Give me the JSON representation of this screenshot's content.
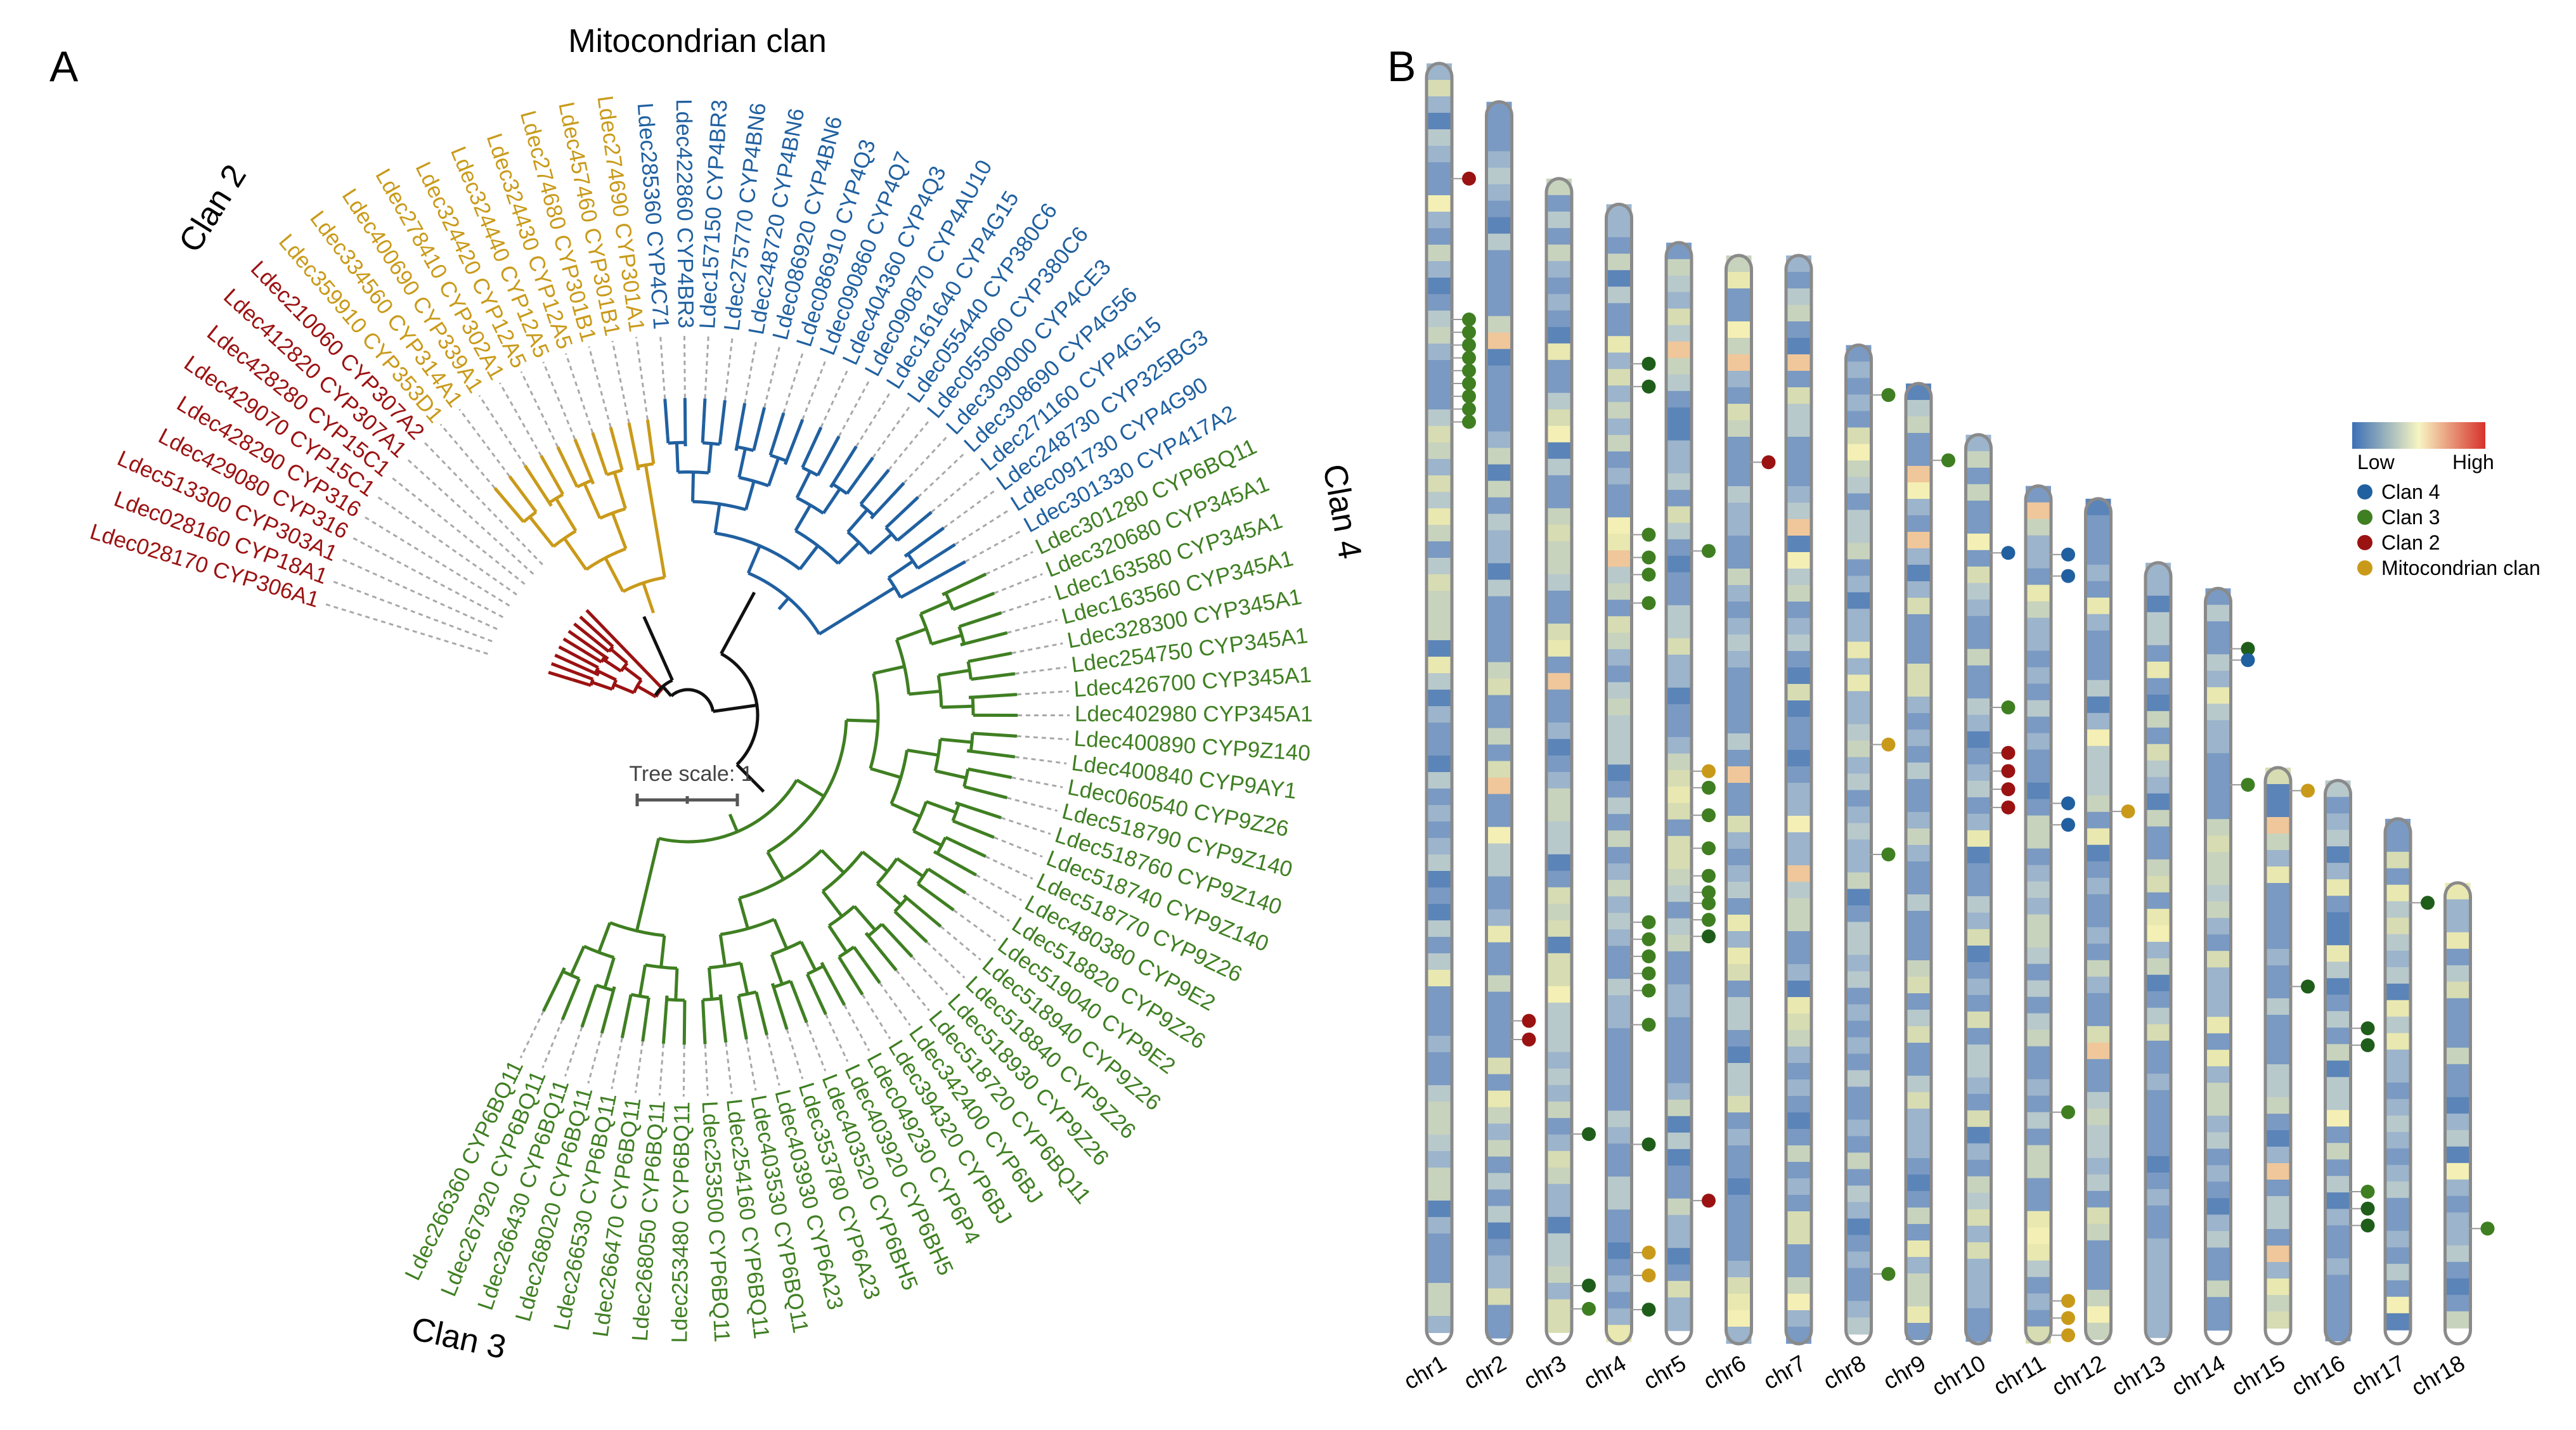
{
  "panels": {
    "a": "A",
    "b": "B"
  },
  "clan_labels": {
    "mito": "Mitocondrian clan",
    "clan2": "Clan 2",
    "clan3": "Clan 3",
    "clan4": "Clan 4"
  },
  "tree_scale": "Tree scale: 1",
  "colors": {
    "mito": "#c99a1a",
    "clan2": "#9b1212",
    "clan3": "#3f7f22",
    "clan3dark": "#1f5e1a",
    "clan4": "#2060a0",
    "branch": "#111111",
    "leader": "#a8a8a8"
  },
  "leaves": [
    {
      "label": "Ldec028170 CYP306A1",
      "clan": "clan2"
    },
    {
      "label": "Ldec028160 CYP18A1",
      "clan": "clan2"
    },
    {
      "label": "Ldec513300 CYP303A1",
      "clan": "clan2"
    },
    {
      "label": "Ldec429080 CYP316",
      "clan": "clan2"
    },
    {
      "label": "Ldec428290 CYP316",
      "clan": "clan2"
    },
    {
      "label": "Ldec429070 CYP15C1",
      "clan": "clan2"
    },
    {
      "label": "Ldec428280 CYP15C1",
      "clan": "clan2"
    },
    {
      "label": "Ldec412820 CYP307A1",
      "clan": "clan2"
    },
    {
      "label": "Ldec210060 CYP307A2",
      "clan": "clan2"
    },
    {
      "label": "Ldec359910 CYP353D1",
      "clan": "mito"
    },
    {
      "label": "Ldec334560 CYP314A1",
      "clan": "mito"
    },
    {
      "label": "Ldec400690 CYP339A1",
      "clan": "mito"
    },
    {
      "label": "Ldec278410 CYP302A1",
      "clan": "mito"
    },
    {
      "label": "Ldec324420 CYP12A5",
      "clan": "mito"
    },
    {
      "label": "Ldec324440 CYP12A5",
      "clan": "mito"
    },
    {
      "label": "Ldec324430 CYP12A5",
      "clan": "mito"
    },
    {
      "label": "Ldec274680 CYP301B1",
      "clan": "mito"
    },
    {
      "label": "Ldec457460 CYP301B1",
      "clan": "mito"
    },
    {
      "label": "Ldec274690 CYP301A1",
      "clan": "mito"
    },
    {
      "label": "Ldec285360 CYP4C71",
      "clan": "clan4"
    },
    {
      "label": "Ldec422860 CYP4BR3",
      "clan": "clan4"
    },
    {
      "label": "Ldec157150 CYP4BR3",
      "clan": "clan4"
    },
    {
      "label": "Ldec275770 CYP4BN6",
      "clan": "clan4"
    },
    {
      "label": "Ldec248720 CYP4BN6",
      "clan": "clan4"
    },
    {
      "label": "Ldec086920 CYP4BN6",
      "clan": "clan4"
    },
    {
      "label": "Ldec086910 CYP4Q3",
      "clan": "clan4"
    },
    {
      "label": "Ldec090860 CYP4Q7",
      "clan": "clan4"
    },
    {
      "label": "Ldec404360 CYP4Q3",
      "clan": "clan4"
    },
    {
      "label": "Ldec090870 CYP4AU10",
      "clan": "clan4"
    },
    {
      "label": "Ldec161640 CYP4G15",
      "clan": "clan4"
    },
    {
      "label": "Ldec055440 CYP380C6",
      "clan": "clan4"
    },
    {
      "label": "Ldec055060 CYP380C6",
      "clan": "clan4"
    },
    {
      "label": "Ldec309000 CYP4CE3",
      "clan": "clan4"
    },
    {
      "label": "Ldec308690 CYP4G56",
      "clan": "clan4"
    },
    {
      "label": "Ldec271160 CYP4G15",
      "clan": "clan4"
    },
    {
      "label": "Ldec248730 CYP325BG3",
      "clan": "clan4"
    },
    {
      "label": "Ldec091730 CYP4G90",
      "clan": "clan4"
    },
    {
      "label": "Ldec301330 CYP417A2",
      "clan": "clan4"
    },
    {
      "label": "Ldec301280 CYP6BQ11",
      "clan": "clan3"
    },
    {
      "label": "Ldec320680 CYP345A1",
      "clan": "clan3"
    },
    {
      "label": "Ldec163580 CYP345A1",
      "clan": "clan3"
    },
    {
      "label": "Ldec163560 CYP345A1",
      "clan": "clan3"
    },
    {
      "label": "Ldec328300 CYP345A1",
      "clan": "clan3"
    },
    {
      "label": "Ldec254750 CYP345A1",
      "clan": "clan3"
    },
    {
      "label": "Ldec426700 CYP345A1",
      "clan": "clan3"
    },
    {
      "label": "Ldec402980 CYP345A1",
      "clan": "clan3"
    },
    {
      "label": "Ldec400890 CYP9Z140",
      "clan": "clan3"
    },
    {
      "label": "Ldec400840 CYP9AY1",
      "clan": "clan3"
    },
    {
      "label": "Ldec060540 CYP9Z26",
      "clan": "clan3"
    },
    {
      "label": "Ldec518790 CYP9Z140",
      "clan": "clan3"
    },
    {
      "label": "Ldec518760 CYP9Z140",
      "clan": "clan3"
    },
    {
      "label": "Ldec518740 CYP9Z140",
      "clan": "clan3"
    },
    {
      "label": "Ldec518770 CYP9Z26",
      "clan": "clan3"
    },
    {
      "label": "Ldec480380 CYP9E2",
      "clan": "clan3"
    },
    {
      "label": "Ldec518820 CYP9Z26",
      "clan": "clan3"
    },
    {
      "label": "Ldec519040 CYP9E2",
      "clan": "clan3"
    },
    {
      "label": "Ldec518940 CYP9Z26",
      "clan": "clan3"
    },
    {
      "label": "Ldec518840 CYP9Z26",
      "clan": "clan3"
    },
    {
      "label": "Ldec518930 CYP9Z26",
      "clan": "clan3"
    },
    {
      "label": "Ldec518720 CYP6BQ11",
      "clan": "clan3"
    },
    {
      "label": "Ldec342400 CYP6BJ",
      "clan": "clan3"
    },
    {
      "label": "Ldec394320 CYP6BJ",
      "clan": "clan3"
    },
    {
      "label": "Ldec049230 CYP6P4",
      "clan": "clan3"
    },
    {
      "label": "Ldec403920 CYP6BH5",
      "clan": "clan3"
    },
    {
      "label": "Ldec403520 CYP6BH5",
      "clan": "clan3"
    },
    {
      "label": "Ldec353780 CYP6A23",
      "clan": "clan3"
    },
    {
      "label": "Ldec403930 CYP6A23",
      "clan": "clan3"
    },
    {
      "label": "Ldec403530 CYP6BQ11",
      "clan": "clan3"
    },
    {
      "label": "Ldec254160 CYP6BQ11",
      "clan": "clan3"
    },
    {
      "label": "Ldec253500 CYP6BQ11",
      "clan": "clan3"
    },
    {
      "label": "Ldec253480 CYP6BQ11",
      "clan": "clan3"
    },
    {
      "label": "Ldec268050 CYP6BQ11",
      "clan": "clan3"
    },
    {
      "label": "Ldec266470 CYP6BQ11",
      "clan": "clan3"
    },
    {
      "label": "Ldec266530 CYP6BQ11",
      "clan": "clan3"
    },
    {
      "label": "Ldec268020 CYP6BQ11",
      "clan": "clan3"
    },
    {
      "label": "Ldec266430 CYP6BQ11",
      "clan": "clan3"
    },
    {
      "label": "Ldec267920 CYP6BQ11",
      "clan": "clan3"
    },
    {
      "label": "Ldec266360 CYP6BQ11",
      "clan": "clan3"
    }
  ],
  "chromosomes": [
    {
      "name": "chr1",
      "length": 1.0
    },
    {
      "name": "chr2",
      "length": 0.97
    },
    {
      "name": "chr3",
      "length": 0.91
    },
    {
      "name": "chr4",
      "length": 0.89
    },
    {
      "name": "chr5",
      "length": 0.86
    },
    {
      "name": "chr6",
      "length": 0.85
    },
    {
      "name": "chr7",
      "length": 0.85
    },
    {
      "name": "chr8",
      "length": 0.78
    },
    {
      "name": "chr9",
      "length": 0.75
    },
    {
      "name": "chr10",
      "length": 0.71
    },
    {
      "name": "chr11",
      "length": 0.67
    },
    {
      "name": "chr12",
      "length": 0.66
    },
    {
      "name": "chr13",
      "length": 0.61
    },
    {
      "name": "chr14",
      "length": 0.59
    },
    {
      "name": "chr15",
      "length": 0.45
    },
    {
      "name": "chr16",
      "length": 0.44
    },
    {
      "name": "chr17",
      "length": 0.41
    },
    {
      "name": "chr18",
      "length": 0.36
    }
  ],
  "gene_markers": [
    {
      "chr": "chr1",
      "pos": 0.09,
      "clan": "clan2"
    },
    {
      "chr": "chr1",
      "pos": 0.2,
      "clan": "clan3"
    },
    {
      "chr": "chr1",
      "pos": 0.21,
      "clan": "clan3"
    },
    {
      "chr": "chr1",
      "pos": 0.22,
      "clan": "clan3"
    },
    {
      "chr": "chr1",
      "pos": 0.23,
      "clan": "clan3"
    },
    {
      "chr": "chr1",
      "pos": 0.24,
      "clan": "clan3"
    },
    {
      "chr": "chr1",
      "pos": 0.25,
      "clan": "clan3"
    },
    {
      "chr": "chr1",
      "pos": 0.26,
      "clan": "clan3"
    },
    {
      "chr": "chr1",
      "pos": 0.27,
      "clan": "clan3"
    },
    {
      "chr": "chr1",
      "pos": 0.28,
      "clan": "clan3"
    },
    {
      "chr": "chr2",
      "pos": 0.74,
      "clan": "clan2"
    },
    {
      "chr": "chr2",
      "pos": 0.755,
      "clan": "clan2"
    },
    {
      "chr": "chr3",
      "pos": 0.82,
      "clan": "clan3dark"
    },
    {
      "chr": "chr3",
      "pos": 0.95,
      "clan": "clan3dark"
    },
    {
      "chr": "chr3",
      "pos": 0.97,
      "clan": "clan3"
    },
    {
      "chr": "chr4",
      "pos": 0.14,
      "clan": "clan3dark"
    },
    {
      "chr": "chr4",
      "pos": 0.16,
      "clan": "clan3dark"
    },
    {
      "chr": "chr4",
      "pos": 0.29,
      "clan": "clan3"
    },
    {
      "chr": "chr4",
      "pos": 0.31,
      "clan": "clan3"
    },
    {
      "chr": "chr4",
      "pos": 0.325,
      "clan": "clan3"
    },
    {
      "chr": "chr4",
      "pos": 0.35,
      "clan": "clan3"
    },
    {
      "chr": "chr4",
      "pos": 0.63,
      "clan": "clan3"
    },
    {
      "chr": "chr4",
      "pos": 0.645,
      "clan": "clan3"
    },
    {
      "chr": "chr4",
      "pos": 0.66,
      "clan": "clan3"
    },
    {
      "chr": "chr4",
      "pos": 0.675,
      "clan": "clan3"
    },
    {
      "chr": "chr4",
      "pos": 0.69,
      "clan": "clan3"
    },
    {
      "chr": "chr4",
      "pos": 0.72,
      "clan": "clan3"
    },
    {
      "chr": "chr4",
      "pos": 0.825,
      "clan": "clan3dark"
    },
    {
      "chr": "chr4",
      "pos": 0.92,
      "clan": "mito"
    },
    {
      "chr": "chr4",
      "pos": 0.94,
      "clan": "mito"
    },
    {
      "chr": "chr4",
      "pos": 0.97,
      "clan": "clan3dark"
    },
    {
      "chr": "chr5",
      "pos": 0.28,
      "clan": "clan3"
    },
    {
      "chr": "chr5",
      "pos": 0.48,
      "clan": "mito"
    },
    {
      "chr": "chr5",
      "pos": 0.495,
      "clan": "clan3"
    },
    {
      "chr": "chr5",
      "pos": 0.52,
      "clan": "clan3"
    },
    {
      "chr": "chr5",
      "pos": 0.55,
      "clan": "clan3"
    },
    {
      "chr": "chr5",
      "pos": 0.575,
      "clan": "clan3"
    },
    {
      "chr": "chr5",
      "pos": 0.59,
      "clan": "clan3"
    },
    {
      "chr": "chr5",
      "pos": 0.6,
      "clan": "clan3"
    },
    {
      "chr": "chr5",
      "pos": 0.615,
      "clan": "clan3"
    },
    {
      "chr": "chr5",
      "pos": 0.63,
      "clan": "clan3dark"
    },
    {
      "chr": "chr5",
      "pos": 0.87,
      "clan": "clan2"
    },
    {
      "chr": "chr6",
      "pos": 0.19,
      "clan": "clan2"
    },
    {
      "chr": "chr8",
      "pos": 0.05,
      "clan": "clan3"
    },
    {
      "chr": "chr8",
      "pos": 0.4,
      "clan": "mito"
    },
    {
      "chr": "chr8",
      "pos": 0.51,
      "clan": "clan3"
    },
    {
      "chr": "chr8",
      "pos": 0.93,
      "clan": "clan3"
    },
    {
      "chr": "chr9",
      "pos": 0.08,
      "clan": "clan3"
    },
    {
      "chr": "chr10",
      "pos": 0.13,
      "clan": "clan4"
    },
    {
      "chr": "chr10",
      "pos": 0.3,
      "clan": "clan3"
    },
    {
      "chr": "chr10",
      "pos": 0.35,
      "clan": "clan2"
    },
    {
      "chr": "chr10",
      "pos": 0.37,
      "clan": "clan2"
    },
    {
      "chr": "chr10",
      "pos": 0.39,
      "clan": "clan2"
    },
    {
      "chr": "chr10",
      "pos": 0.41,
      "clan": "clan2"
    },
    {
      "chr": "chr11",
      "pos": 0.08,
      "clan": "clan4"
    },
    {
      "chr": "chr11",
      "pos": 0.105,
      "clan": "clan4"
    },
    {
      "chr": "chr11",
      "pos": 0.37,
      "clan": "clan4"
    },
    {
      "chr": "chr11",
      "pos": 0.395,
      "clan": "clan4"
    },
    {
      "chr": "chr11",
      "pos": 0.73,
      "clan": "clan3"
    },
    {
      "chr": "chr11",
      "pos": 0.95,
      "clan": "mito"
    },
    {
      "chr": "chr11",
      "pos": 0.97,
      "clan": "mito"
    },
    {
      "chr": "chr11",
      "pos": 0.99,
      "clan": "mito"
    },
    {
      "chr": "chr12",
      "pos": 0.37,
      "clan": "mito"
    },
    {
      "chr": "chr14",
      "pos": 0.08,
      "clan": "clan3dark"
    },
    {
      "chr": "chr14",
      "pos": 0.095,
      "clan": "clan4"
    },
    {
      "chr": "chr14",
      "pos": 0.26,
      "clan": "clan3"
    },
    {
      "chr": "chr15",
      "pos": 0.04,
      "clan": "mito"
    },
    {
      "chr": "chr15",
      "pos": 0.38,
      "clan": "clan3dark"
    },
    {
      "chr": "chr16",
      "pos": 0.44,
      "clan": "clan3dark"
    },
    {
      "chr": "chr16",
      "pos": 0.47,
      "clan": "clan3dark"
    },
    {
      "chr": "chr16",
      "pos": 0.73,
      "clan": "clan3"
    },
    {
      "chr": "chr16",
      "pos": 0.76,
      "clan": "clan3dark"
    },
    {
      "chr": "chr16",
      "pos": 0.79,
      "clan": "clan3dark"
    },
    {
      "chr": "chr17",
      "pos": 0.16,
      "clan": "clan3dark"
    },
    {
      "chr": "chr18",
      "pos": 0.75,
      "clan": "clan3"
    }
  ],
  "density_legend": {
    "low": "Low",
    "high": "High"
  },
  "clan_legend": [
    {
      "label": "Clan 4",
      "clan": "clan4"
    },
    {
      "label": "Clan 3",
      "clan": "clan3"
    },
    {
      "label": "Clan 2",
      "clan": "clan2"
    },
    {
      "label": "Mitocondrian clan",
      "clan": "mito"
    }
  ]
}
